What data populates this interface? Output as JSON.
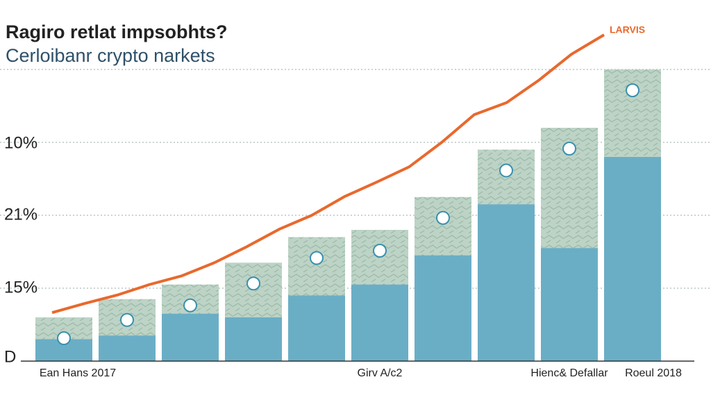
{
  "chart_data": {
    "type": "bar",
    "title": "Ragiro retlat impsobhts?",
    "subtitle": "Cerloibanr crypto narkets",
    "badge": "LARVIS",
    "axis_labels": [
      "10%",
      "21%",
      "15%",
      "D"
    ],
    "categories": [
      "Ean Hans 2017",
      null,
      null,
      null,
      null,
      "Girv A/c2",
      null,
      null,
      "Hienc& Defallar",
      "Roeul 2018"
    ],
    "values": [
      12,
      17,
      21,
      27,
      34,
      36,
      45,
      58,
      64,
      80
    ],
    "color": "#bcd3c6",
    "inner_values": [
      6,
      7,
      13,
      12,
      18,
      21,
      29,
      43,
      31,
      56
    ],
    "inner_color": "#6aaec6",
    "line_values": [
      13.3,
      15.8,
      18.1,
      21,
      23.4,
      27,
      31.4,
      36.2,
      40,
      45.1,
      49.1,
      53.3,
      60,
      67.6,
      70.9,
      77.1,
      84.2,
      89.5
    ],
    "line_color": "#e8692d",
    "ylim": [
      0,
      100
    ],
    "yticks": [
      20,
      40,
      60,
      80
    ],
    "grid": true
  }
}
